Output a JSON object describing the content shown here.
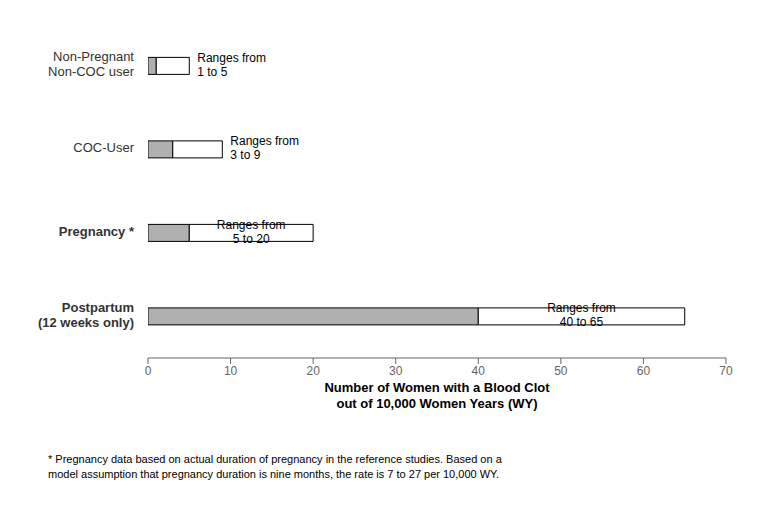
{
  "chart_data": {
    "type": "bar",
    "orientation": "horizontal",
    "stacked": true,
    "categories": [
      "Non-Pregnant\nNon-COC user",
      "COC-User",
      "Pregnancy *",
      "Postpartum\n(12 weeks only)"
    ],
    "series": [
      {
        "color": "#b0b0b0",
        "values": [
          1,
          3,
          5,
          40
        ]
      },
      {
        "color": "#ffffff",
        "values": [
          4,
          6,
          15,
          25
        ]
      }
    ],
    "annotations": [
      "Ranges from\n1 to 5",
      "Ranges from\n3 to 9",
      "Ranges from\n5 to 20",
      "Ranges from\n40 to 65"
    ],
    "xlabel": "Number of Women with a Blood Clot\nout of 10,000 Women Years (WY)",
    "xlim": [
      0,
      70
    ],
    "xticks": [
      0,
      10,
      20,
      30,
      40,
      50,
      60,
      70
    ],
    "footnote": "* Pregnancy data based on actual duration of pregnancy in the reference studies. Based on a\nmodel assumption that pregnancy duration is nine months, the rate is 7 to 27 per 10,000 WY.",
    "grid": false
  }
}
